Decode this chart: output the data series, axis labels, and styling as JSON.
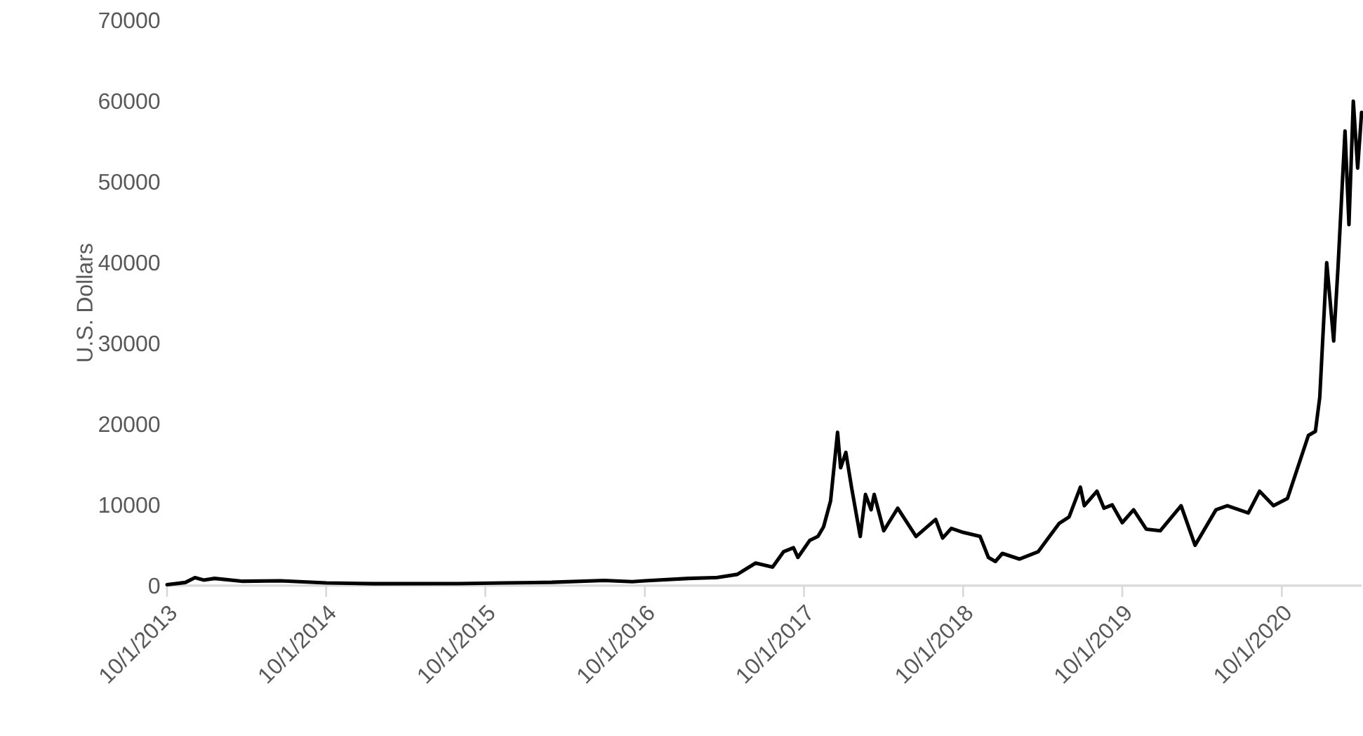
{
  "chart_data": {
    "type": "line",
    "ylabel": "U.S. Dollars",
    "x": [
      "2013-10-01",
      "2013-11-12",
      "2013-12-04",
      "2013-12-24",
      "2014-01-18",
      "2014-03-24",
      "2014-06-18",
      "2014-10-01",
      "2015-01-19",
      "2015-08-01",
      "2015-11-15",
      "2016-03-01",
      "2016-06-30",
      "2016-09-02",
      "2016-10-01",
      "2017-01-09",
      "2017-03-14",
      "2017-05-01",
      "2017-06-12",
      "2017-07-21",
      "2017-08-15",
      "2017-09-07",
      "2017-09-17",
      "2017-10-14",
      "2017-11-02",
      "2017-11-15",
      "2017-12-01",
      "2017-12-17",
      "2017-12-24",
      "2018-01-05",
      "2018-01-18",
      "2018-02-07",
      "2018-02-19",
      "2018-03-04",
      "2018-03-11",
      "2018-04-02",
      "2018-05-04",
      "2018-06-15",
      "2018-07-30",
      "2018-08-15",
      "2018-09-04",
      "2018-10-01",
      "2018-11-09",
      "2018-11-28",
      "2018-12-14",
      "2018-12-30",
      "2019-02-07",
      "2019-03-22",
      "2019-05-09",
      "2019-06-01",
      "2019-06-27",
      "2019-07-06",
      "2019-08-04",
      "2019-08-20",
      "2019-09-08",
      "2019-10-01",
      "2019-10-27",
      "2019-11-25",
      "2019-12-27",
      "2020-02-13",
      "2020-03-16",
      "2020-05-03",
      "2020-05-29",
      "2020-07-16",
      "2020-08-11",
      "2020-09-12",
      "2020-10-14",
      "2020-12-01",
      "2020-12-17",
      "2020-12-27",
      "2021-01-12",
      "2021-01-28",
      "2021-02-07",
      "2021-02-23",
      "2021-03-04",
      "2021-03-14",
      "2021-03-24",
      "2021-04-02"
    ],
    "series": [
      {
        "color": "#000000",
        "values": [
          130,
          400,
          1000,
          700,
          900,
          550,
          600,
          350,
          250,
          260,
          350,
          420,
          650,
          500,
          610,
          900,
          1000,
          1400,
          2800,
          2300,
          4200,
          4700,
          3500,
          5600,
          6100,
          7300,
          10500,
          19000,
          14600,
          16500,
          12200,
          6100,
          11300,
          9400,
          11300,
          6800,
          9600,
          6100,
          8200,
          5900,
          7100,
          6600,
          6100,
          3500,
          3000,
          4000,
          3300,
          4200,
          7700,
          8500,
          12200,
          9900,
          11700,
          9600,
          10000,
          7800,
          9400,
          7000,
          6800,
          9900,
          5000,
          9400,
          9900,
          9000,
          11700,
          9900,
          10800,
          18600,
          19100,
          23300,
          40000,
          30300,
          39500,
          56300,
          44700,
          60000,
          51700,
          58600
        ]
      }
    ],
    "xlim": [
      "2013-10-01",
      "2021-04-02"
    ],
    "xticks": [
      {
        "value": "2013-10-01",
        "label": "10/1/2013"
      },
      {
        "value": "2014-10-01",
        "label": "10/1/2014"
      },
      {
        "value": "2015-10-01",
        "label": "10/1/2015"
      },
      {
        "value": "2016-10-01",
        "label": "10/1/2016"
      },
      {
        "value": "2017-10-01",
        "label": "10/1/2017"
      },
      {
        "value": "2018-10-01",
        "label": "10/1/2018"
      },
      {
        "value": "2019-10-01",
        "label": "10/1/2019"
      },
      {
        "value": "2020-10-01",
        "label": "10/1/2020"
      }
    ],
    "ylim": [
      0,
      70000
    ],
    "yticks": [
      0,
      10000,
      20000,
      30000,
      40000,
      50000,
      60000,
      70000
    ],
    "grid": false,
    "legend": false,
    "marker": "none",
    "line_style": "solid"
  }
}
